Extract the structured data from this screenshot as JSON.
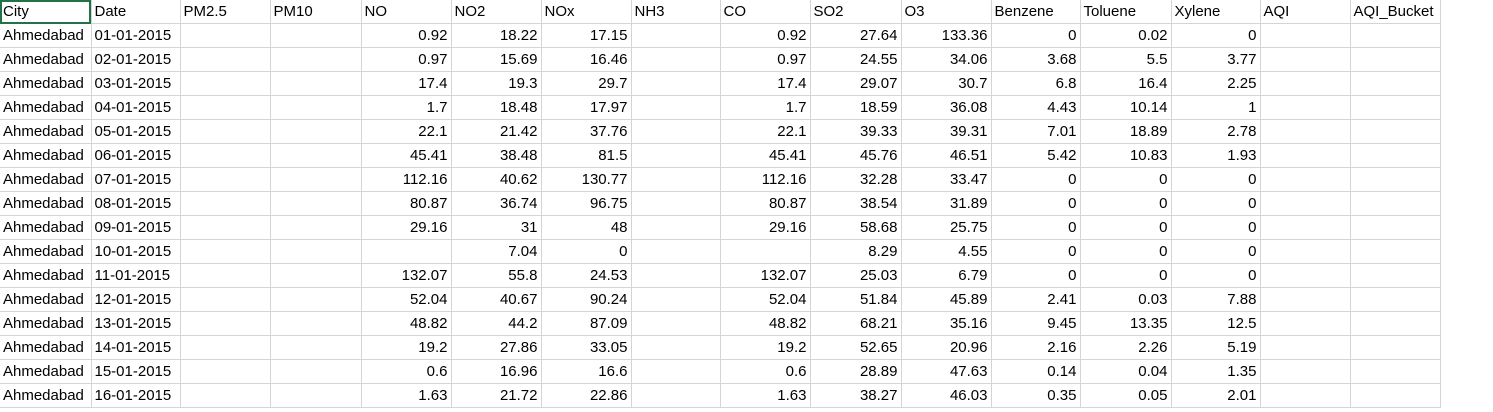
{
  "sheet": {
    "headers": [
      "City",
      "Date",
      "PM2.5",
      "PM10",
      "NO",
      "NO2",
      "NOx",
      "NH3",
      "CO",
      "SO2",
      "O3",
      "Benzene",
      "Toluene",
      "Xylene",
      "AQI",
      "AQI_Bucket"
    ],
    "rows": [
      [
        "Ahmedabad",
        "01-01-2015",
        "",
        "",
        "0.92",
        "18.22",
        "17.15",
        "",
        "0.92",
        "27.64",
        "133.36",
        "0",
        "0.02",
        "0",
        "",
        ""
      ],
      [
        "Ahmedabad",
        "02-01-2015",
        "",
        "",
        "0.97",
        "15.69",
        "16.46",
        "",
        "0.97",
        "24.55",
        "34.06",
        "3.68",
        "5.5",
        "3.77",
        "",
        ""
      ],
      [
        "Ahmedabad",
        "03-01-2015",
        "",
        "",
        "17.4",
        "19.3",
        "29.7",
        "",
        "17.4",
        "29.07",
        "30.7",
        "6.8",
        "16.4",
        "2.25",
        "",
        ""
      ],
      [
        "Ahmedabad",
        "04-01-2015",
        "",
        "",
        "1.7",
        "18.48",
        "17.97",
        "",
        "1.7",
        "18.59",
        "36.08",
        "4.43",
        "10.14",
        "1",
        "",
        ""
      ],
      [
        "Ahmedabad",
        "05-01-2015",
        "",
        "",
        "22.1",
        "21.42",
        "37.76",
        "",
        "22.1",
        "39.33",
        "39.31",
        "7.01",
        "18.89",
        "2.78",
        "",
        ""
      ],
      [
        "Ahmedabad",
        "06-01-2015",
        "",
        "",
        "45.41",
        "38.48",
        "81.5",
        "",
        "45.41",
        "45.76",
        "46.51",
        "5.42",
        "10.83",
        "1.93",
        "",
        ""
      ],
      [
        "Ahmedabad",
        "07-01-2015",
        "",
        "",
        "112.16",
        "40.62",
        "130.77",
        "",
        "112.16",
        "32.28",
        "33.47",
        "0",
        "0",
        "0",
        "",
        ""
      ],
      [
        "Ahmedabad",
        "08-01-2015",
        "",
        "",
        "80.87",
        "36.74",
        "96.75",
        "",
        "80.87",
        "38.54",
        "31.89",
        "0",
        "0",
        "0",
        "",
        ""
      ],
      [
        "Ahmedabad",
        "09-01-2015",
        "",
        "",
        "29.16",
        "31",
        "48",
        "",
        "29.16",
        "58.68",
        "25.75",
        "0",
        "0",
        "0",
        "",
        ""
      ],
      [
        "Ahmedabad",
        "10-01-2015",
        "",
        "",
        "",
        "7.04",
        "0",
        "",
        "",
        "8.29",
        "4.55",
        "0",
        "0",
        "0",
        "",
        ""
      ],
      [
        "Ahmedabad",
        "11-01-2015",
        "",
        "",
        "132.07",
        "55.8",
        "24.53",
        "",
        "132.07",
        "25.03",
        "6.79",
        "0",
        "0",
        "0",
        "",
        ""
      ],
      [
        "Ahmedabad",
        "12-01-2015",
        "",
        "",
        "52.04",
        "40.67",
        "90.24",
        "",
        "52.04",
        "51.84",
        "45.89",
        "2.41",
        "0.03",
        "7.88",
        "",
        ""
      ],
      [
        "Ahmedabad",
        "13-01-2015",
        "",
        "",
        "48.82",
        "44.2",
        "87.09",
        "",
        "48.82",
        "68.21",
        "35.16",
        "9.45",
        "13.35",
        "12.5",
        "",
        ""
      ],
      [
        "Ahmedabad",
        "14-01-2015",
        "",
        "",
        "19.2",
        "27.86",
        "33.05",
        "",
        "19.2",
        "52.65",
        "20.96",
        "2.16",
        "2.26",
        "5.19",
        "",
        ""
      ],
      [
        "Ahmedabad",
        "15-01-2015",
        "",
        "",
        "0.6",
        "16.96",
        "16.6",
        "",
        "0.6",
        "28.89",
        "47.63",
        "0.14",
        "0.04",
        "1.35",
        "",
        ""
      ],
      [
        "Ahmedabad",
        "16-01-2015",
        "",
        "",
        "1.63",
        "21.72",
        "22.86",
        "",
        "1.63",
        "38.27",
        "46.03",
        "0.35",
        "0.05",
        "2.01",
        "",
        ""
      ]
    ]
  },
  "colors": {
    "gridline": "#d4d4d4",
    "selection": "#217346"
  }
}
